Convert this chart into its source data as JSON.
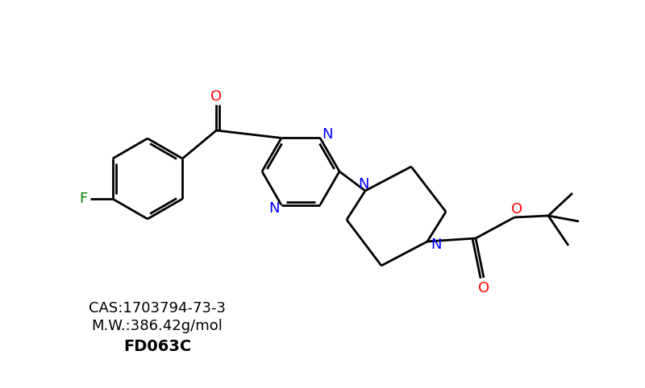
{
  "background_color": "#ffffff",
  "cas": "CAS:1703794-73-3",
  "mw": "M.W.:386.42g/mol",
  "compound_id": "FD063C",
  "colors": {
    "bond": "#000000",
    "nitrogen": "#0000ff",
    "oxygen": "#ff0000",
    "fluorine": "#008000",
    "text": "#000000"
  },
  "figsize": [
    8.0,
    4.82
  ],
  "dpi": 100
}
